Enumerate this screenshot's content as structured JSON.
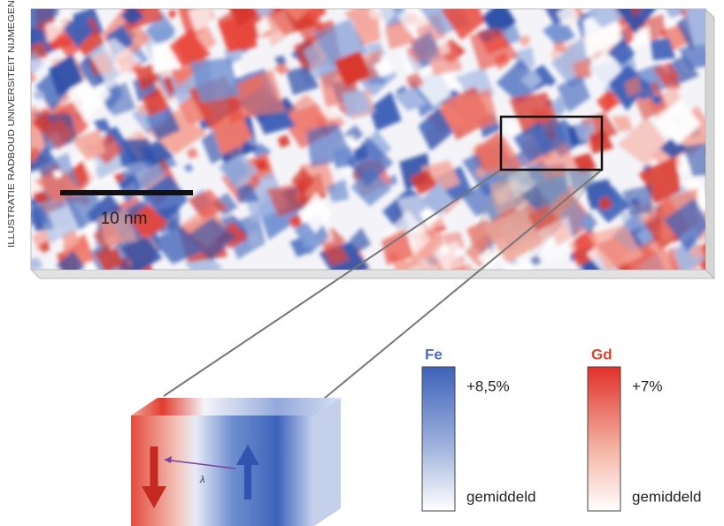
{
  "credit": "ILLUSTRATIE RADBOUD UNIVERSITEIT NIJMEGEN",
  "scale_bar": "10 nm",
  "inset": {
    "label": "λ"
  },
  "legend": [
    {
      "element": "Fe",
      "max": "+8,5%",
      "min": "gemiddeld"
    },
    {
      "element": "Gd",
      "max": "+7%",
      "min": "gemiddeld"
    }
  ]
}
